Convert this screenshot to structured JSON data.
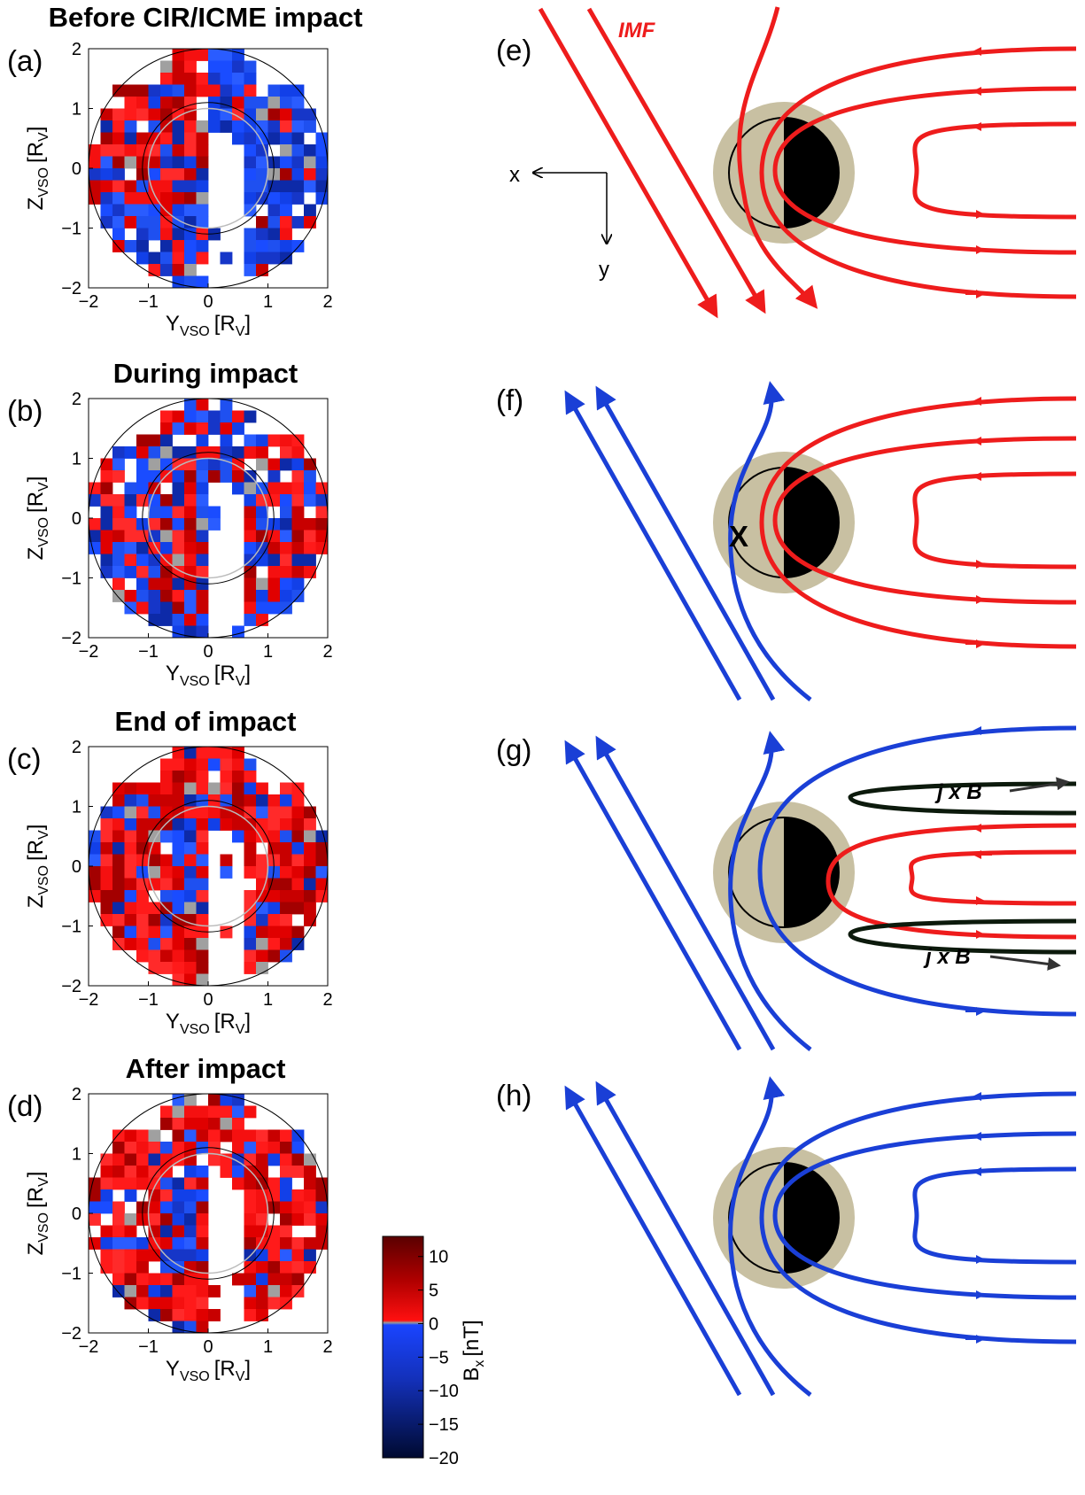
{
  "figure": {
    "panels": [
      {
        "label": "(a)",
        "title": "Before CIR/ICME impact"
      },
      {
        "label": "(b)",
        "title": "During impact"
      },
      {
        "label": "(c)",
        "title": "End of impact"
      },
      {
        "label": "(d)",
        "title": "After impact"
      }
    ],
    "sketches": [
      {
        "label": "(e)"
      },
      {
        "label": "(f)"
      },
      {
        "label": "(g)"
      },
      {
        "label": "(h)"
      }
    ],
    "axes": {
      "x_label": "Y",
      "x_sub": "VSO",
      "x_unit": "[R",
      "x_unit_sub": "V",
      "x_close": "]",
      "y_label": "Z",
      "y_sub": "VSO",
      "y_unit": "[R",
      "y_unit_sub": "V",
      "y_close": "]",
      "x_ticks": [
        "−2",
        "−1",
        "0",
        "1",
        "2"
      ],
      "y_ticks": [
        "2",
        "1",
        "0",
        "−1",
        "−2"
      ]
    },
    "colorbar": {
      "label": "B",
      "label_sub": "x",
      "unit": "[nT]",
      "ticks": [
        "10",
        "5",
        "0",
        "−5",
        "−10",
        "−15",
        "−20"
      ],
      "range": [
        -20,
        13
      ]
    },
    "annotations": {
      "imf": "IMF",
      "x_axis": "x",
      "y_axis": "y",
      "x_point": "X",
      "jxb": "j x B"
    },
    "colors": {
      "red": "#ee1c1c",
      "blue": "#1a3fd6",
      "dark_blue": "#1f39b8",
      "tan": "#c8c0a2",
      "black_line": "#0c1a0c"
    }
  },
  "chart_data": [
    {
      "type": "heatmap",
      "title": "Before CIR/ICME impact",
      "xlabel": "YVSO [RV]",
      "ylabel": "ZVSO [RV]",
      "xlim": [
        -2,
        2
      ],
      "ylim": [
        -2,
        2
      ],
      "colorbar": "Bx [nT]",
      "clim": [
        -20,
        13
      ],
      "dominant_sign": "mixed: positive on dayside-left, negative elsewhere"
    },
    {
      "type": "heatmap",
      "title": "During impact",
      "xlabel": "YVSO [RV]",
      "ylabel": "ZVSO [RV]",
      "xlim": [
        -2,
        2
      ],
      "ylim": [
        -2,
        2
      ],
      "colorbar": "Bx [nT]",
      "clim": [
        -20,
        13
      ],
      "dominant_sign": "mixed"
    },
    {
      "type": "heatmap",
      "title": "End of impact",
      "xlabel": "YVSO [RV]",
      "ylabel": "ZVSO [RV]",
      "xlim": [
        -2,
        2
      ],
      "ylim": [
        -2,
        2
      ],
      "colorbar": "Bx [nT]",
      "clim": [
        -20,
        13
      ],
      "dominant_sign": "mostly positive outside, negative core"
    },
    {
      "type": "heatmap",
      "title": "After impact",
      "xlabel": "YVSO [RV]",
      "ylabel": "ZVSO [RV]",
      "xlim": [
        -2,
        2
      ],
      "ylim": [
        -2,
        2
      ],
      "colorbar": "Bx [nT]",
      "clim": [
        -20,
        13
      ],
      "dominant_sign": "mostly positive outside, negative core"
    }
  ]
}
